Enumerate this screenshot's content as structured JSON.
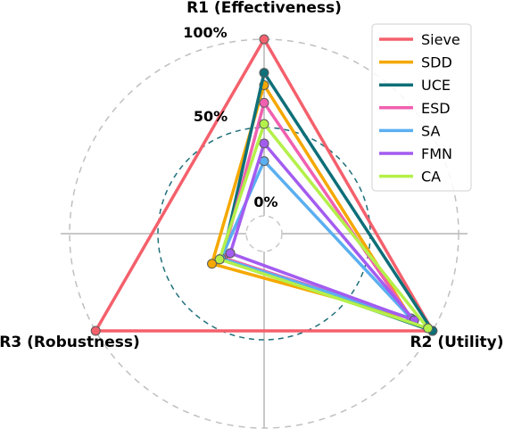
{
  "chart_data": {
    "type": "radar",
    "axes": [
      "R1 (Effectiveness)",
      "R2 (Utility)",
      "R3 (Robustness)"
    ],
    "tick_labels": [
      "0%",
      "50%",
      "100%"
    ],
    "range": [
      0,
      100
    ],
    "legend_position": "top-right",
    "series": [
      {
        "name": "Sieve",
        "color": "#f4606c",
        "values": [
          100,
          100,
          100
        ]
      },
      {
        "name": "SDD",
        "color": "#f5a800",
        "values": [
          74,
          86,
          24
        ]
      },
      {
        "name": "UCE",
        "color": "#0e6f78",
        "values": [
          81,
          100,
          17
        ]
      },
      {
        "name": "ESD",
        "color": "#f060b0",
        "values": [
          64,
          86,
          17
        ]
      },
      {
        "name": "SA",
        "color": "#5aaff0",
        "values": [
          31,
          86,
          18
        ]
      },
      {
        "name": "FMN",
        "color": "#a35cf0",
        "values": [
          41,
          88,
          12
        ]
      },
      {
        "name": "CA",
        "color": "#b4f04a",
        "values": [
          52,
          97,
          19
        ]
      }
    ]
  }
}
